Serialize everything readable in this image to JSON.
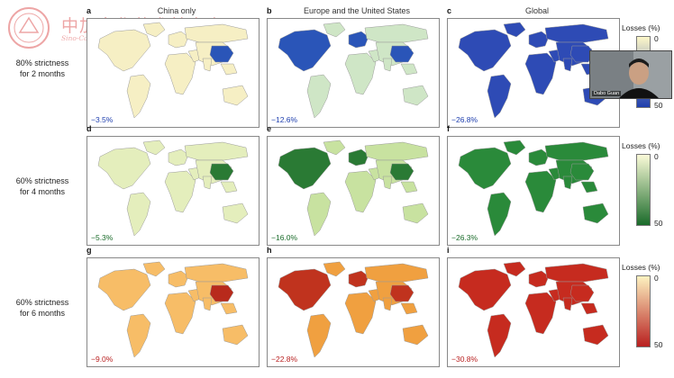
{
  "watermark": {
    "cn": "中加文化艺术基金会",
    "en": "Sino-Canada Culture and Arts Foundation"
  },
  "columns": [
    {
      "letter_top": "a",
      "title": "China only"
    },
    {
      "letter_top": "b",
      "title": "Europe and the United States"
    },
    {
      "letter_top": "c",
      "title": "Global"
    }
  ],
  "rows": [
    {
      "label_line1": "80% strictness",
      "label_line2": "for 2 months",
      "letters": [
        "a",
        "b",
        "c"
      ],
      "values": [
        "−3.5%",
        "−12.6%",
        "−26.8%"
      ],
      "legend": {
        "title": "Losses (%)",
        "min": "0",
        "max": "50",
        "color_low": "#fdf7c8",
        "color_high": "#1f3fae"
      },
      "palette": {
        "base": [
          "#f6efc4",
          "#cfe6c6",
          "#2e4bb5"
        ],
        "hot": [
          "#2a55b8",
          "#2a55b8",
          "#2a47b0"
        ]
      }
    },
    {
      "label_line1": "60% strictness",
      "label_line2": "for 4 months",
      "letters": [
        "d",
        "e",
        "f"
      ],
      "values": [
        "−5.3%",
        "−16.0%",
        "−26.3%"
      ],
      "legend": {
        "title": "Losses (%)",
        "min": "0",
        "max": "50",
        "color_low": "#fbfbd8",
        "color_high": "#1a6b2a"
      },
      "palette": {
        "base": [
          "#e4eebc",
          "#c8e2a0",
          "#2a8a3a"
        ],
        "hot": [
          "#2a7a34",
          "#2a7a34",
          "#237a32"
        ]
      }
    },
    {
      "label_line1": "60% strictness",
      "label_line2": "for 6 months",
      "letters": [
        "g",
        "h",
        "i"
      ],
      "values": [
        "−9.0%",
        "−22.8%",
        "−30.8%"
      ],
      "legend": {
        "title": "Losses (%)",
        "min": "0",
        "max": "50",
        "color_low": "#fdf2c0",
        "color_high": "#b81f1f"
      },
      "palette": {
        "base": [
          "#f7bd67",
          "#f0a040",
          "#c62b1f"
        ],
        "hot": [
          "#b82a1c",
          "#c0331e",
          "#9e1a16"
        ]
      }
    }
  ],
  "webcam": {
    "name": "Dabo Guan"
  }
}
